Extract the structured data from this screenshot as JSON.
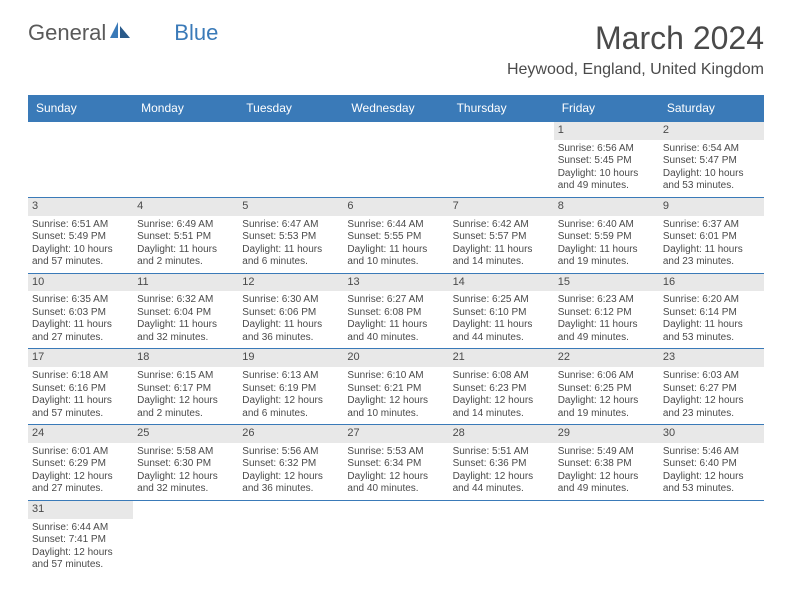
{
  "brand": {
    "part1": "General",
    "part2": "Blue"
  },
  "title": "March 2024",
  "location": "Heywood, England, United Kingdom",
  "colors": {
    "headerBg": "#3a7ab8",
    "headerText": "#ffffff",
    "dayNumBg": "#e8e8e8",
    "text": "#4a4a4a",
    "border": "#3a7ab8"
  },
  "daysOfWeek": [
    "Sunday",
    "Monday",
    "Tuesday",
    "Wednesday",
    "Thursday",
    "Friday",
    "Saturday"
  ],
  "weeks": [
    [
      null,
      null,
      null,
      null,
      null,
      {
        "n": "1",
        "sunrise": "Sunrise: 6:56 AM",
        "sunset": "Sunset: 5:45 PM",
        "daylight": "Daylight: 10 hours and 49 minutes."
      },
      {
        "n": "2",
        "sunrise": "Sunrise: 6:54 AM",
        "sunset": "Sunset: 5:47 PM",
        "daylight": "Daylight: 10 hours and 53 minutes."
      }
    ],
    [
      {
        "n": "3",
        "sunrise": "Sunrise: 6:51 AM",
        "sunset": "Sunset: 5:49 PM",
        "daylight": "Daylight: 10 hours and 57 minutes."
      },
      {
        "n": "4",
        "sunrise": "Sunrise: 6:49 AM",
        "sunset": "Sunset: 5:51 PM",
        "daylight": "Daylight: 11 hours and 2 minutes."
      },
      {
        "n": "5",
        "sunrise": "Sunrise: 6:47 AM",
        "sunset": "Sunset: 5:53 PM",
        "daylight": "Daylight: 11 hours and 6 minutes."
      },
      {
        "n": "6",
        "sunrise": "Sunrise: 6:44 AM",
        "sunset": "Sunset: 5:55 PM",
        "daylight": "Daylight: 11 hours and 10 minutes."
      },
      {
        "n": "7",
        "sunrise": "Sunrise: 6:42 AM",
        "sunset": "Sunset: 5:57 PM",
        "daylight": "Daylight: 11 hours and 14 minutes."
      },
      {
        "n": "8",
        "sunrise": "Sunrise: 6:40 AM",
        "sunset": "Sunset: 5:59 PM",
        "daylight": "Daylight: 11 hours and 19 minutes."
      },
      {
        "n": "9",
        "sunrise": "Sunrise: 6:37 AM",
        "sunset": "Sunset: 6:01 PM",
        "daylight": "Daylight: 11 hours and 23 minutes."
      }
    ],
    [
      {
        "n": "10",
        "sunrise": "Sunrise: 6:35 AM",
        "sunset": "Sunset: 6:03 PM",
        "daylight": "Daylight: 11 hours and 27 minutes."
      },
      {
        "n": "11",
        "sunrise": "Sunrise: 6:32 AM",
        "sunset": "Sunset: 6:04 PM",
        "daylight": "Daylight: 11 hours and 32 minutes."
      },
      {
        "n": "12",
        "sunrise": "Sunrise: 6:30 AM",
        "sunset": "Sunset: 6:06 PM",
        "daylight": "Daylight: 11 hours and 36 minutes."
      },
      {
        "n": "13",
        "sunrise": "Sunrise: 6:27 AM",
        "sunset": "Sunset: 6:08 PM",
        "daylight": "Daylight: 11 hours and 40 minutes."
      },
      {
        "n": "14",
        "sunrise": "Sunrise: 6:25 AM",
        "sunset": "Sunset: 6:10 PM",
        "daylight": "Daylight: 11 hours and 44 minutes."
      },
      {
        "n": "15",
        "sunrise": "Sunrise: 6:23 AM",
        "sunset": "Sunset: 6:12 PM",
        "daylight": "Daylight: 11 hours and 49 minutes."
      },
      {
        "n": "16",
        "sunrise": "Sunrise: 6:20 AM",
        "sunset": "Sunset: 6:14 PM",
        "daylight": "Daylight: 11 hours and 53 minutes."
      }
    ],
    [
      {
        "n": "17",
        "sunrise": "Sunrise: 6:18 AM",
        "sunset": "Sunset: 6:16 PM",
        "daylight": "Daylight: 11 hours and 57 minutes."
      },
      {
        "n": "18",
        "sunrise": "Sunrise: 6:15 AM",
        "sunset": "Sunset: 6:17 PM",
        "daylight": "Daylight: 12 hours and 2 minutes."
      },
      {
        "n": "19",
        "sunrise": "Sunrise: 6:13 AM",
        "sunset": "Sunset: 6:19 PM",
        "daylight": "Daylight: 12 hours and 6 minutes."
      },
      {
        "n": "20",
        "sunrise": "Sunrise: 6:10 AM",
        "sunset": "Sunset: 6:21 PM",
        "daylight": "Daylight: 12 hours and 10 minutes."
      },
      {
        "n": "21",
        "sunrise": "Sunrise: 6:08 AM",
        "sunset": "Sunset: 6:23 PM",
        "daylight": "Daylight: 12 hours and 14 minutes."
      },
      {
        "n": "22",
        "sunrise": "Sunrise: 6:06 AM",
        "sunset": "Sunset: 6:25 PM",
        "daylight": "Daylight: 12 hours and 19 minutes."
      },
      {
        "n": "23",
        "sunrise": "Sunrise: 6:03 AM",
        "sunset": "Sunset: 6:27 PM",
        "daylight": "Daylight: 12 hours and 23 minutes."
      }
    ],
    [
      {
        "n": "24",
        "sunrise": "Sunrise: 6:01 AM",
        "sunset": "Sunset: 6:29 PM",
        "daylight": "Daylight: 12 hours and 27 minutes."
      },
      {
        "n": "25",
        "sunrise": "Sunrise: 5:58 AM",
        "sunset": "Sunset: 6:30 PM",
        "daylight": "Daylight: 12 hours and 32 minutes."
      },
      {
        "n": "26",
        "sunrise": "Sunrise: 5:56 AM",
        "sunset": "Sunset: 6:32 PM",
        "daylight": "Daylight: 12 hours and 36 minutes."
      },
      {
        "n": "27",
        "sunrise": "Sunrise: 5:53 AM",
        "sunset": "Sunset: 6:34 PM",
        "daylight": "Daylight: 12 hours and 40 minutes."
      },
      {
        "n": "28",
        "sunrise": "Sunrise: 5:51 AM",
        "sunset": "Sunset: 6:36 PM",
        "daylight": "Daylight: 12 hours and 44 minutes."
      },
      {
        "n": "29",
        "sunrise": "Sunrise: 5:49 AM",
        "sunset": "Sunset: 6:38 PM",
        "daylight": "Daylight: 12 hours and 49 minutes."
      },
      {
        "n": "30",
        "sunrise": "Sunrise: 5:46 AM",
        "sunset": "Sunset: 6:40 PM",
        "daylight": "Daylight: 12 hours and 53 minutes."
      }
    ],
    [
      {
        "n": "31",
        "sunrise": "Sunrise: 6:44 AM",
        "sunset": "Sunset: 7:41 PM",
        "daylight": "Daylight: 12 hours and 57 minutes."
      },
      null,
      null,
      null,
      null,
      null,
      null
    ]
  ]
}
